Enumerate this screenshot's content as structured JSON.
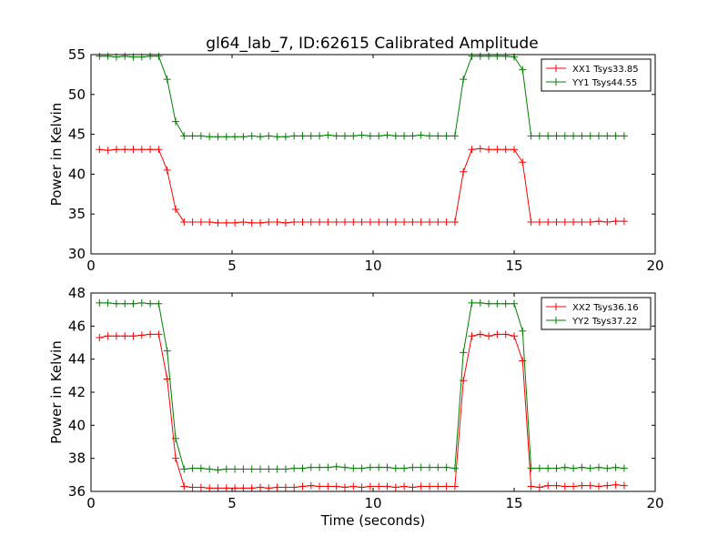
{
  "title": "gl64_lab_7, ID:62615 Calibrated Amplitude",
  "colors": {
    "xx": "#ff0000",
    "yy": "#008000"
  },
  "chart_data": [
    {
      "type": "line",
      "title": "gl64_lab_7, ID:62615 Calibrated Amplitude",
      "xlabel": "",
      "ylabel": "Power in Kelvin",
      "xlim": [
        0,
        20
      ],
      "ylim": [
        30,
        55
      ],
      "xticks": [
        0,
        5,
        10,
        15,
        20
      ],
      "yticks": [
        30,
        35,
        40,
        45,
        50,
        55
      ],
      "grid": false,
      "legend": "top-right",
      "x": [
        0.3,
        0.6,
        0.9,
        1.2,
        1.5,
        1.8,
        2.1,
        2.4,
        2.7,
        3.0,
        3.3,
        3.6,
        3.9,
        4.2,
        4.5,
        4.8,
        5.1,
        5.4,
        5.7,
        6.0,
        6.3,
        6.6,
        6.9,
        7.2,
        7.5,
        7.8,
        8.1,
        8.4,
        8.7,
        9.0,
        9.3,
        9.6,
        9.9,
        10.2,
        10.5,
        10.8,
        11.1,
        11.4,
        11.7,
        12.0,
        12.3,
        12.6,
        12.9,
        13.2,
        13.5,
        13.8,
        14.1,
        14.4,
        14.7,
        15.0,
        15.3,
        15.6,
        15.9,
        16.2,
        16.5,
        16.8,
        17.1,
        17.4,
        17.7,
        18.0,
        18.3,
        18.6,
        18.9
      ],
      "series": [
        {
          "name": "XX1 Tsys33.85",
          "color": "#ff0000",
          "values": [
            43.1,
            43.0,
            43.1,
            43.1,
            43.1,
            43.1,
            43.1,
            43.1,
            40.5,
            35.6,
            34.0,
            34.0,
            34.0,
            34.0,
            33.9,
            33.9,
            33.9,
            34.0,
            33.9,
            33.9,
            34.0,
            34.0,
            33.9,
            34.0,
            34.0,
            34.0,
            34.0,
            34.0,
            34.0,
            34.0,
            34.0,
            34.0,
            34.0,
            34.0,
            34.0,
            34.0,
            34.0,
            34.0,
            34.0,
            34.0,
            34.0,
            34.0,
            34.0,
            40.3,
            43.1,
            43.2,
            43.1,
            43.1,
            43.1,
            43.1,
            41.5,
            34.0,
            34.0,
            34.0,
            34.0,
            34.0,
            34.0,
            34.0,
            34.0,
            34.1,
            34.0,
            34.1,
            34.1
          ]
        },
        {
          "name": "YY1 Tsys44.55",
          "color": "#008000",
          "values": [
            54.8,
            54.8,
            54.7,
            54.8,
            54.7,
            54.7,
            54.8,
            54.8,
            51.9,
            46.6,
            44.8,
            44.8,
            44.8,
            44.7,
            44.7,
            44.7,
            44.7,
            44.7,
            44.8,
            44.7,
            44.8,
            44.7,
            44.7,
            44.8,
            44.8,
            44.8,
            44.8,
            44.9,
            44.8,
            44.8,
            44.8,
            44.9,
            44.8,
            44.8,
            44.9,
            44.8,
            44.8,
            44.8,
            44.9,
            44.8,
            44.8,
            44.8,
            44.8,
            51.9,
            54.8,
            54.8,
            54.8,
            54.8,
            54.8,
            54.7,
            53.1,
            44.8,
            44.8,
            44.8,
            44.8,
            44.8,
            44.8,
            44.8,
            44.8,
            44.8,
            44.8,
            44.8,
            44.8
          ]
        }
      ]
    },
    {
      "type": "line",
      "title": "",
      "xlabel": "Time (seconds)",
      "ylabel": "Power in Kelvin",
      "xlim": [
        0,
        20
      ],
      "ylim": [
        36,
        48
      ],
      "xticks": [
        0,
        5,
        10,
        15,
        20
      ],
      "yticks": [
        36,
        38,
        40,
        42,
        44,
        46,
        48
      ],
      "grid": false,
      "legend": "top-right",
      "x": [
        0.3,
        0.6,
        0.9,
        1.2,
        1.5,
        1.8,
        2.1,
        2.4,
        2.7,
        3.0,
        3.3,
        3.6,
        3.9,
        4.2,
        4.5,
        4.8,
        5.1,
        5.4,
        5.7,
        6.0,
        6.3,
        6.6,
        6.9,
        7.2,
        7.5,
        7.8,
        8.1,
        8.4,
        8.7,
        9.0,
        9.3,
        9.6,
        9.9,
        10.2,
        10.5,
        10.8,
        11.1,
        11.4,
        11.7,
        12.0,
        12.3,
        12.6,
        12.9,
        13.2,
        13.5,
        13.8,
        14.1,
        14.4,
        14.7,
        15.0,
        15.3,
        15.6,
        15.9,
        16.2,
        16.5,
        16.8,
        17.1,
        17.4,
        17.7,
        18.0,
        18.3,
        18.6,
        18.9
      ],
      "series": [
        {
          "name": "XX2 Tsys36.16",
          "color": "#ff0000",
          "values": [
            45.3,
            45.4,
            45.4,
            45.4,
            45.4,
            45.45,
            45.5,
            45.5,
            42.8,
            38.0,
            36.3,
            36.25,
            36.25,
            36.2,
            36.2,
            36.2,
            36.2,
            36.2,
            36.2,
            36.25,
            36.2,
            36.25,
            36.25,
            36.25,
            36.3,
            36.35,
            36.3,
            36.3,
            36.3,
            36.25,
            36.3,
            36.25,
            36.3,
            36.3,
            36.3,
            36.25,
            36.3,
            36.25,
            36.3,
            36.3,
            36.3,
            36.3,
            36.3,
            42.7,
            45.4,
            45.5,
            45.4,
            45.5,
            45.5,
            45.4,
            43.9,
            36.3,
            36.25,
            36.35,
            36.35,
            36.3,
            36.3,
            36.35,
            36.35,
            36.3,
            36.35,
            36.4,
            36.35
          ]
        },
        {
          "name": "YY2 Tsys37.22",
          "color": "#008000",
          "values": [
            47.4,
            47.4,
            47.35,
            47.35,
            47.35,
            47.4,
            47.35,
            47.35,
            44.5,
            39.2,
            37.35,
            37.4,
            37.4,
            37.35,
            37.3,
            37.35,
            37.35,
            37.35,
            37.35,
            37.35,
            37.35,
            37.35,
            37.35,
            37.4,
            37.4,
            37.45,
            37.45,
            37.45,
            37.5,
            37.45,
            37.4,
            37.4,
            37.45,
            37.45,
            37.45,
            37.4,
            37.4,
            37.45,
            37.45,
            37.45,
            37.45,
            37.45,
            37.4,
            44.4,
            47.4,
            47.4,
            47.35,
            47.35,
            47.35,
            47.35,
            45.7,
            37.4,
            37.4,
            37.4,
            37.4,
            37.45,
            37.4,
            37.45,
            37.4,
            37.45,
            37.4,
            37.45,
            37.4
          ]
        }
      ]
    }
  ]
}
